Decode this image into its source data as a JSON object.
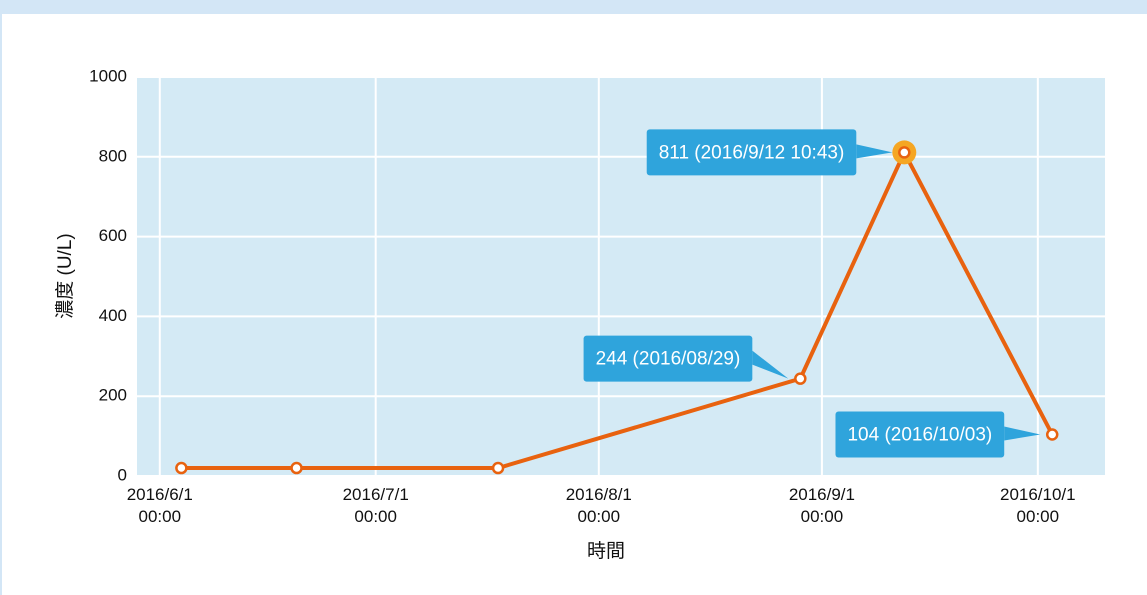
{
  "chart_data": {
    "type": "line",
    "x_label": "時間",
    "y_label": "濃度 (U/L)",
    "x": [
      "2016-06-04T00:00",
      "2016-06-20T00:00",
      "2016-07-18T00:00",
      "2016-08-29T00:00",
      "2016-09-12T10:43",
      "2016-10-03T00:00"
    ],
    "series": [
      {
        "color": "#e8620f",
        "values": [
          20,
          20,
          20,
          244,
          811,
          104
        ],
        "value_labels": [
          null,
          null,
          null,
          "244 (2016/08/29)",
          "811 (2016/9/12 10:43)",
          "104 (2016/10/03)"
        ]
      }
    ],
    "xlim": [
      "2016-05-28T20:00",
      "2016-10-10T08:00"
    ],
    "xticks": [
      {
        "value": "2016-06-01T00:00",
        "label": "2016/6/1\n00:00"
      },
      {
        "value": "2016-07-01T00:00",
        "label": "2016/7/1\n00:00"
      },
      {
        "value": "2016-08-01T00:00",
        "label": "2016/8/1\n00:00"
      },
      {
        "value": "2016-09-01T00:00",
        "label": "2016/9/1\n00:00"
      },
      {
        "value": "2016-10-01T00:00",
        "label": "2016/10/1\n00:00"
      }
    ],
    "ylim": [
      0,
      1000
    ],
    "yticks": [
      0,
      200,
      400,
      600,
      800,
      1000
    ],
    "grid": true,
    "plot_background": "#d4eaf5",
    "label_color": "#2fa4dc"
  }
}
